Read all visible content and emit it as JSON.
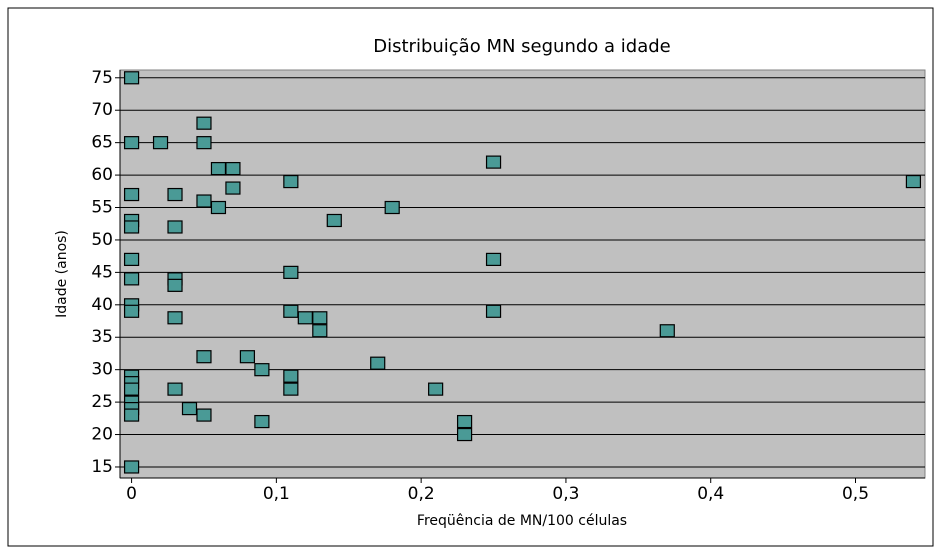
{
  "chart_data": {
    "type": "scatter",
    "title": "Distribuição MN segundo a idade",
    "x_label": "Freqüência de MN/100 células",
    "y_label": "Idade (anos)",
    "x": [
      0,
      0.05,
      0,
      0.02,
      0.05,
      0.25,
      0.06,
      0.07,
      0.11,
      0.07,
      0.54,
      0,
      0.03,
      0.05,
      0.18,
      0.06,
      0.14,
      0,
      0,
      0.03,
      0,
      0.25,
      0.11,
      0,
      0.03,
      0.03,
      0,
      0,
      0.11,
      0.25,
      0.03,
      0.12,
      0.13,
      0.13,
      0.37,
      0.05,
      0.08,
      0.17,
      0.09,
      0,
      0.11,
      0,
      0,
      0.11,
      0.03,
      0.21,
      0,
      0,
      0.04,
      0,
      0.05,
      0.09,
      0.23,
      0.23,
      0
    ],
    "y": [
      75,
      68,
      65,
      65,
      65,
      62,
      61,
      61,
      59,
      58,
      59,
      57,
      57,
      56,
      55,
      55,
      53,
      53,
      52,
      52,
      47,
      47,
      45,
      44,
      44,
      43,
      40,
      39,
      39,
      39,
      38,
      38,
      38,
      36,
      36,
      32,
      32,
      31,
      30,
      29,
      29,
      28,
      27,
      27,
      27,
      27,
      25,
      24,
      24,
      23,
      23,
      22,
      22,
      20,
      15
    ],
    "color": "#4a9a96",
    "xlim": [
      -0.008,
      0.548
    ],
    "xticks": [
      0,
      {
        "value": 0.1,
        "label": "0,1"
      },
      {
        "value": 0.2,
        "label": "0,2"
      },
      {
        "value": 0.3,
        "label": "0,3"
      },
      {
        "value": 0.4,
        "label": "0,4"
      },
      {
        "value": 0.5,
        "label": "0,5"
      }
    ],
    "ylim": [
      13.3,
      76.2
    ],
    "yticks": [
      15,
      20,
      25,
      30,
      35,
      40,
      45,
      50,
      55,
      60,
      65,
      70,
      75
    ],
    "grid": true
  }
}
